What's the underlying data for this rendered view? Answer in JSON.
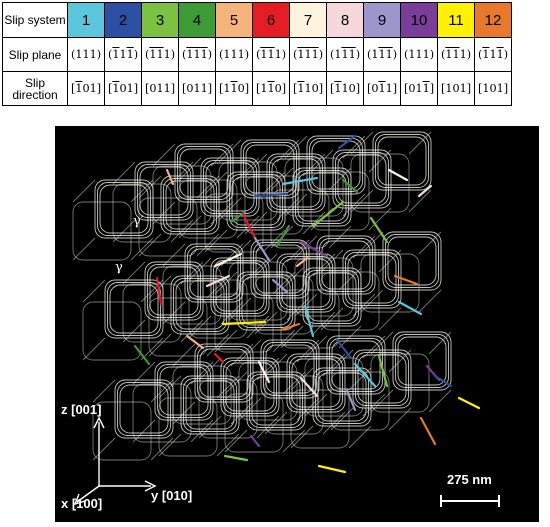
{
  "table": {
    "row_headers": {
      "system": "Slip system",
      "plane": "Slip plane",
      "direction": "Slip direction"
    },
    "systems": [
      {
        "id": "1",
        "color": "#5bc6dc",
        "text_color": "#000000",
        "plane": [
          [
            "1",
            false
          ],
          [
            "1",
            false
          ],
          [
            "1",
            false
          ]
        ],
        "direction": [
          [
            "1",
            true
          ],
          [
            "0",
            false
          ],
          [
            "1",
            false
          ]
        ]
      },
      {
        "id": "2",
        "color": "#2d4fa3",
        "text_color": "#000000",
        "plane": [
          [
            "1",
            true
          ],
          [
            "1",
            false
          ],
          [
            "1",
            true
          ]
        ],
        "direction": [
          [
            "1",
            true
          ],
          [
            "0",
            false
          ],
          [
            "1",
            false
          ]
        ]
      },
      {
        "id": "3",
        "color": "#7cc242",
        "text_color": "#000000",
        "plane": [
          [
            "1",
            true
          ],
          [
            "1",
            true
          ],
          [
            "1",
            false
          ]
        ],
        "direction": [
          [
            "0",
            false
          ],
          [
            "1",
            false
          ],
          [
            "1",
            false
          ]
        ]
      },
      {
        "id": "4",
        "color": "#3d9b35",
        "text_color": "#000000",
        "plane": [
          [
            "1",
            true
          ],
          [
            "1",
            true
          ],
          [
            "1",
            true
          ]
        ],
        "direction": [
          [
            "0",
            false
          ],
          [
            "1",
            false
          ],
          [
            "1",
            false
          ]
        ]
      },
      {
        "id": "5",
        "color": "#f6b37c",
        "text_color": "#000000",
        "plane": [
          [
            "1",
            false
          ],
          [
            "1",
            false
          ],
          [
            "1",
            false
          ]
        ],
        "direction": [
          [
            "1",
            false
          ],
          [
            "1",
            true
          ],
          [
            "0",
            false
          ]
        ]
      },
      {
        "id": "6",
        "color": "#e41c23",
        "text_color": "#000000",
        "plane": [
          [
            "1",
            true
          ],
          [
            "1",
            true
          ],
          [
            "1",
            false
          ]
        ],
        "direction": [
          [
            "1",
            false
          ],
          [
            "1",
            true
          ],
          [
            "0",
            false
          ]
        ]
      },
      {
        "id": "7",
        "color": "#fef3dd",
        "text_color": "#000000",
        "plane": [
          [
            "1",
            true
          ],
          [
            "1",
            true
          ],
          [
            "1",
            true
          ]
        ],
        "direction": [
          [
            "1",
            true
          ],
          [
            "1",
            false
          ],
          [
            "0",
            false
          ]
        ]
      },
      {
        "id": "8",
        "color": "#f6d7dc",
        "text_color": "#000000",
        "plane": [
          [
            "1",
            false
          ],
          [
            "1",
            true
          ],
          [
            "1",
            true
          ]
        ],
        "direction": [
          [
            "1",
            true
          ],
          [
            "1",
            false
          ],
          [
            "0",
            false
          ]
        ]
      },
      {
        "id": "9",
        "color": "#9d96cb",
        "text_color": "#000000",
        "plane": [
          [
            "1",
            false
          ],
          [
            "1",
            true
          ],
          [
            "1",
            true
          ]
        ],
        "direction": [
          [
            "0",
            false
          ],
          [
            "1",
            true
          ],
          [
            "1",
            false
          ]
        ]
      },
      {
        "id": "10",
        "color": "#7a3d98",
        "text_color": "#000000",
        "plane": [
          [
            "1",
            false
          ],
          [
            "1",
            false
          ],
          [
            "1",
            false
          ]
        ],
        "direction": [
          [
            "0",
            false
          ],
          [
            "1",
            false
          ],
          [
            "1",
            true
          ]
        ]
      },
      {
        "id": "11",
        "color": "#fff200",
        "text_color": "#000000",
        "plane": [
          [
            "1",
            true
          ],
          [
            "1",
            true
          ],
          [
            "1",
            false
          ]
        ],
        "direction": [
          [
            "1",
            false
          ],
          [
            "0",
            false
          ],
          [
            "1",
            false
          ]
        ]
      },
      {
        "id": "12",
        "color": "#e8782a",
        "text_color": "#000000",
        "plane": [
          [
            "1",
            true
          ],
          [
            "1",
            false
          ],
          [
            "1",
            true
          ]
        ],
        "direction": [
          [
            "1",
            false
          ],
          [
            "0",
            false
          ],
          [
            "1",
            false
          ]
        ]
      }
    ]
  },
  "figure": {
    "phase_gamma_prime": "γ′",
    "phase_gamma": "γ",
    "axis_z": "z [001]",
    "axis_x": "x [100]",
    "axis_y": "y [010]",
    "scale_bar": "275 nm",
    "background": "#000000",
    "cube_edge_color": "#e8e8e0"
  }
}
